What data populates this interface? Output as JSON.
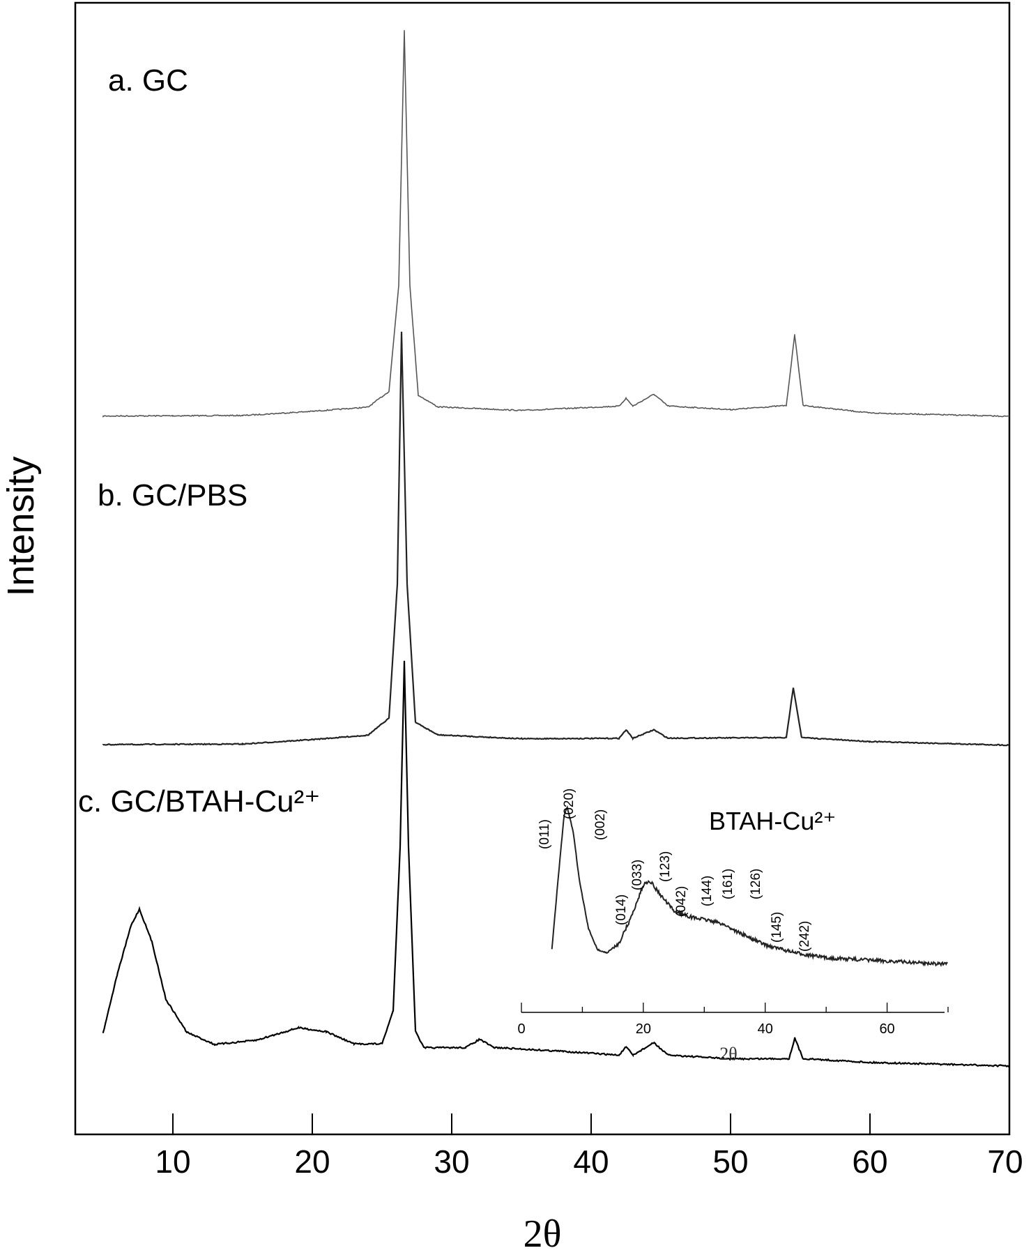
{
  "chart_data": {
    "type": "line",
    "xlabel": "2θ",
    "ylabel": "Intensity",
    "xlim": [
      3,
      70
    ],
    "x_ticks": [
      10,
      20,
      30,
      40,
      50,
      60,
      70
    ],
    "legend": "none",
    "grid": false,
    "series": [
      {
        "name": "a. GC",
        "color": "#555555",
        "points": [
          [
            5,
            0.02
          ],
          [
            10,
            0.02
          ],
          [
            15,
            0.02
          ],
          [
            20,
            0.03
          ],
          [
            24,
            0.04
          ],
          [
            25.5,
            0.08
          ],
          [
            26.2,
            0.35
          ],
          [
            26.6,
            1.0
          ],
          [
            27.0,
            0.35
          ],
          [
            27.6,
            0.07
          ],
          [
            29,
            0.04
          ],
          [
            35,
            0.03
          ],
          [
            42,
            0.04
          ],
          [
            42.5,
            0.06
          ],
          [
            43,
            0.04
          ],
          [
            44.5,
            0.07
          ],
          [
            45.5,
            0.04
          ],
          [
            50,
            0.03
          ],
          [
            54,
            0.04
          ],
          [
            54.6,
            0.22
          ],
          [
            55.2,
            0.04
          ],
          [
            60,
            0.02
          ],
          [
            70,
            0.01
          ]
        ]
      },
      {
        "name": "b. GC/PBS",
        "color": "#222222",
        "points": [
          [
            5,
            0.02
          ],
          [
            10,
            0.02
          ],
          [
            15,
            0.02
          ],
          [
            20,
            0.03
          ],
          [
            24,
            0.04
          ],
          [
            25.5,
            0.08
          ],
          [
            26.1,
            0.4
          ],
          [
            26.4,
            1.0
          ],
          [
            26.8,
            0.4
          ],
          [
            27.4,
            0.07
          ],
          [
            29,
            0.04
          ],
          [
            35,
            0.03
          ],
          [
            42,
            0.03
          ],
          [
            42.5,
            0.05
          ],
          [
            43,
            0.03
          ],
          [
            44.5,
            0.05
          ],
          [
            45.5,
            0.03
          ],
          [
            50,
            0.03
          ],
          [
            54,
            0.03
          ],
          [
            54.5,
            0.15
          ],
          [
            55.1,
            0.03
          ],
          [
            60,
            0.02
          ],
          [
            70,
            0.01
          ]
        ]
      },
      {
        "name": "c. GC/BTAH-Cu²⁺",
        "color": "#000000",
        "points": [
          [
            5,
            0.1
          ],
          [
            6,
            0.24
          ],
          [
            7,
            0.36
          ],
          [
            7.6,
            0.4
          ],
          [
            8.5,
            0.32
          ],
          [
            9.5,
            0.18
          ],
          [
            11,
            0.1
          ],
          [
            13,
            0.07
          ],
          [
            16,
            0.08
          ],
          [
            19,
            0.11
          ],
          [
            21,
            0.1
          ],
          [
            23,
            0.07
          ],
          [
            25,
            0.07
          ],
          [
            25.8,
            0.15
          ],
          [
            26.3,
            0.55
          ],
          [
            26.6,
            1.0
          ],
          [
            26.9,
            0.55
          ],
          [
            27.4,
            0.1
          ],
          [
            28,
            0.06
          ],
          [
            31,
            0.06
          ],
          [
            32,
            0.08
          ],
          [
            33,
            0.06
          ],
          [
            38,
            0.05
          ],
          [
            42,
            0.04
          ],
          [
            42.5,
            0.06
          ],
          [
            43,
            0.04
          ],
          [
            44.5,
            0.07
          ],
          [
            45.5,
            0.04
          ],
          [
            50,
            0.03
          ],
          [
            54.2,
            0.03
          ],
          [
            54.6,
            0.08
          ],
          [
            55.2,
            0.03
          ],
          [
            60,
            0.02
          ],
          [
            70,
            0.01
          ]
        ]
      }
    ],
    "inset": {
      "title": "BTAH-Cu²⁺",
      "xlabel": "2θ",
      "xlim": [
        0,
        70
      ],
      "x_ticks": [
        0,
        20,
        40,
        60
      ],
      "points": [
        [
          5,
          0.12
        ],
        [
          6,
          0.55
        ],
        [
          7,
          0.95
        ],
        [
          7.5,
          1.0
        ],
        [
          8.5,
          0.85
        ],
        [
          9.5,
          0.55
        ],
        [
          11,
          0.25
        ],
        [
          12.5,
          0.12
        ],
        [
          14,
          0.1
        ],
        [
          16,
          0.16
        ],
        [
          18,
          0.32
        ],
        [
          20,
          0.52
        ],
        [
          21,
          0.55
        ],
        [
          23,
          0.45
        ],
        [
          25,
          0.36
        ],
        [
          28,
          0.32
        ],
        [
          31,
          0.3
        ],
        [
          33,
          0.28
        ],
        [
          36,
          0.22
        ],
        [
          40,
          0.15
        ],
        [
          45,
          0.1
        ],
        [
          50,
          0.07
        ],
        [
          55,
          0.06
        ],
        [
          60,
          0.05
        ],
        [
          65,
          0.04
        ],
        [
          70,
          0.03
        ]
      ],
      "reflections": [
        "(011)",
        "(020)",
        "(002)",
        "(014)",
        "(033)",
        "(123)",
        "(042)",
        "(144)",
        "(161)",
        "(126)",
        "(145)",
        "(242)"
      ]
    }
  }
}
